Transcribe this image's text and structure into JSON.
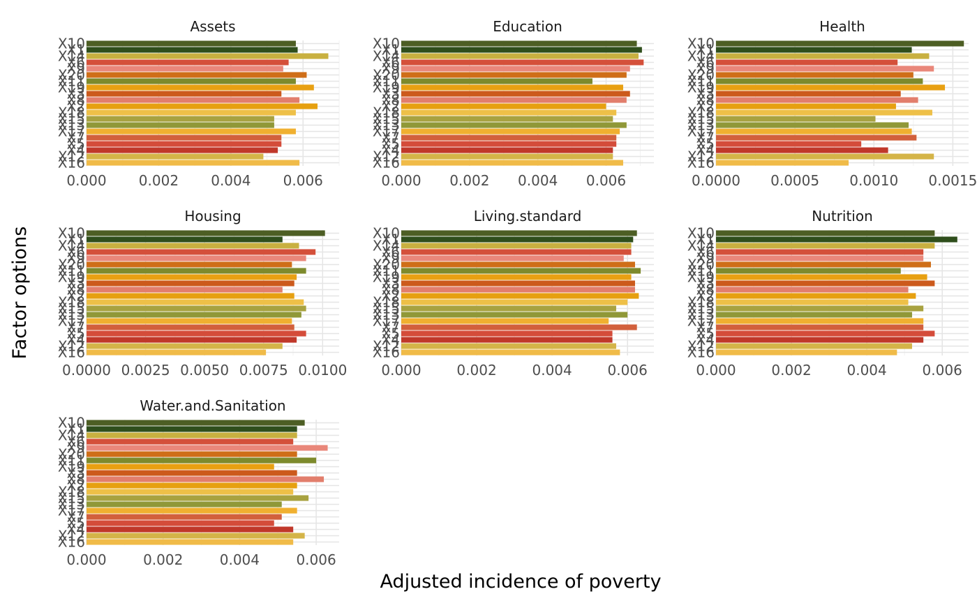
{
  "chart_data": {
    "type": "bar",
    "orientation": "horizontal",
    "facet_wrap": {
      "ncol": 3,
      "scales": "free_x"
    },
    "xlabel": "Adjusted incidence of poverty",
    "ylabel": "Factor options",
    "grid": true,
    "categories": [
      "X10",
      "X1",
      "X14",
      "X6",
      "X9",
      "X20",
      "X11",
      "X19",
      "X3",
      "X8",
      "X2",
      "X18",
      "X15",
      "X13",
      "X17",
      "X7",
      "X5",
      "X4",
      "X12",
      "X16"
    ],
    "colors": [
      "#4d5e24",
      "#2f4e1c",
      "#c8b040",
      "#d4503a",
      "#e9877a",
      "#cf6e18",
      "#7d8a2c",
      "#e8a012",
      "#cc5a1c",
      "#e27e6c",
      "#e6a010",
      "#eec048",
      "#a8a240",
      "#909838",
      "#f0b030",
      "#d2603c",
      "#d44c3a",
      "#c0382a",
      "#d4b448",
      "#f0bb48"
    ],
    "panels": [
      {
        "title": "Assets",
        "xlim": [
          0,
          0.007
        ],
        "xticks": [
          0,
          0.002,
          0.004,
          0.006
        ],
        "xtick_labels": [
          "0.000",
          "0.002",
          "0.004",
          "0.006"
        ],
        "values": [
          0.0058,
          0.00585,
          0.0067,
          0.0056,
          0.00545,
          0.0061,
          0.0058,
          0.0063,
          0.0054,
          0.0059,
          0.0064,
          0.0058,
          0.0052,
          0.0052,
          0.0058,
          0.0054,
          0.0054,
          0.0053,
          0.0049,
          0.0059
        ]
      },
      {
        "title": "Education",
        "xlim": [
          0,
          0.0074
        ],
        "xticks": [
          0,
          0.002,
          0.004,
          0.006
        ],
        "xtick_labels": [
          "0.000",
          "0.002",
          "0.004",
          "0.006"
        ],
        "values": [
          0.0069,
          0.00705,
          0.00695,
          0.0071,
          0.0067,
          0.0066,
          0.0056,
          0.0065,
          0.0067,
          0.0066,
          0.006,
          0.0063,
          0.0062,
          0.0066,
          0.0064,
          0.0063,
          0.0063,
          0.0062,
          0.0062,
          0.0065
        ]
      },
      {
        "title": "Health",
        "xlim": [
          0,
          0.0016
        ],
        "xticks": [
          0,
          0.0005,
          0.001,
          0.0015
        ],
        "xtick_labels": [
          "0.0000",
          "0.0005",
          "0.0010",
          "0.0015"
        ],
        "values": [
          0.00157,
          0.00124,
          0.00135,
          0.00115,
          0.00138,
          0.00125,
          0.00131,
          0.00145,
          0.00117,
          0.00128,
          0.00114,
          0.00137,
          0.00101,
          0.00122,
          0.00124,
          0.00127,
          0.00092,
          0.00109,
          0.00138,
          0.00084
        ]
      },
      {
        "title": "Housing",
        "xlim": [
          0,
          0.0107
        ],
        "xticks": [
          0,
          0.0025,
          0.005,
          0.0075,
          0.01
        ],
        "xtick_labels": [
          "0.0000",
          "0.0025",
          "0.0050",
          "0.0075",
          "0.0100"
        ],
        "values": [
          0.0101,
          0.0083,
          0.009,
          0.0097,
          0.0093,
          0.0087,
          0.0093,
          0.0089,
          0.0088,
          0.0083,
          0.0088,
          0.0092,
          0.0093,
          0.0091,
          0.0087,
          0.0088,
          0.0093,
          0.0089,
          0.0083,
          0.0076
        ]
      },
      {
        "title": "Living.standard",
        "xlim": [
          0,
          0.0067
        ],
        "xticks": [
          0,
          0.002,
          0.004,
          0.006
        ],
        "xtick_labels": [
          "0.000",
          "0.002",
          "0.004",
          "0.006"
        ],
        "values": [
          0.00625,
          0.00615,
          0.0061,
          0.0061,
          0.0059,
          0.0062,
          0.00635,
          0.0061,
          0.0062,
          0.0062,
          0.0063,
          0.006,
          0.0057,
          0.006,
          0.0055,
          0.00625,
          0.0056,
          0.0056,
          0.0057,
          0.0058
        ]
      },
      {
        "title": "Nutrition",
        "xlim": [
          0,
          0.0067
        ],
        "xticks": [
          0,
          0.002,
          0.004,
          0.006
        ],
        "xtick_labels": [
          "0.000",
          "0.002",
          "0.004",
          "0.006"
        ],
        "values": [
          0.0058,
          0.0064,
          0.0058,
          0.0055,
          0.0055,
          0.0057,
          0.0049,
          0.0056,
          0.0058,
          0.0051,
          0.0053,
          0.0051,
          0.0055,
          0.0052,
          0.0055,
          0.0055,
          0.0058,
          0.0055,
          0.0052,
          0.0048
        ]
      },
      {
        "title": "Water.and.Sanitation",
        "xlim": [
          0,
          0.0066
        ],
        "xticks": [
          0,
          0.002,
          0.004,
          0.006
        ],
        "xtick_labels": [
          "0.000",
          "0.002",
          "0.004",
          "0.006"
        ],
        "values": [
          0.0057,
          0.0055,
          0.0055,
          0.0054,
          0.0063,
          0.0055,
          0.006,
          0.0049,
          0.0055,
          0.0062,
          0.0055,
          0.0054,
          0.0058,
          0.0051,
          0.0055,
          0.0051,
          0.0049,
          0.0054,
          0.0057,
          0.0054
        ]
      }
    ]
  }
}
